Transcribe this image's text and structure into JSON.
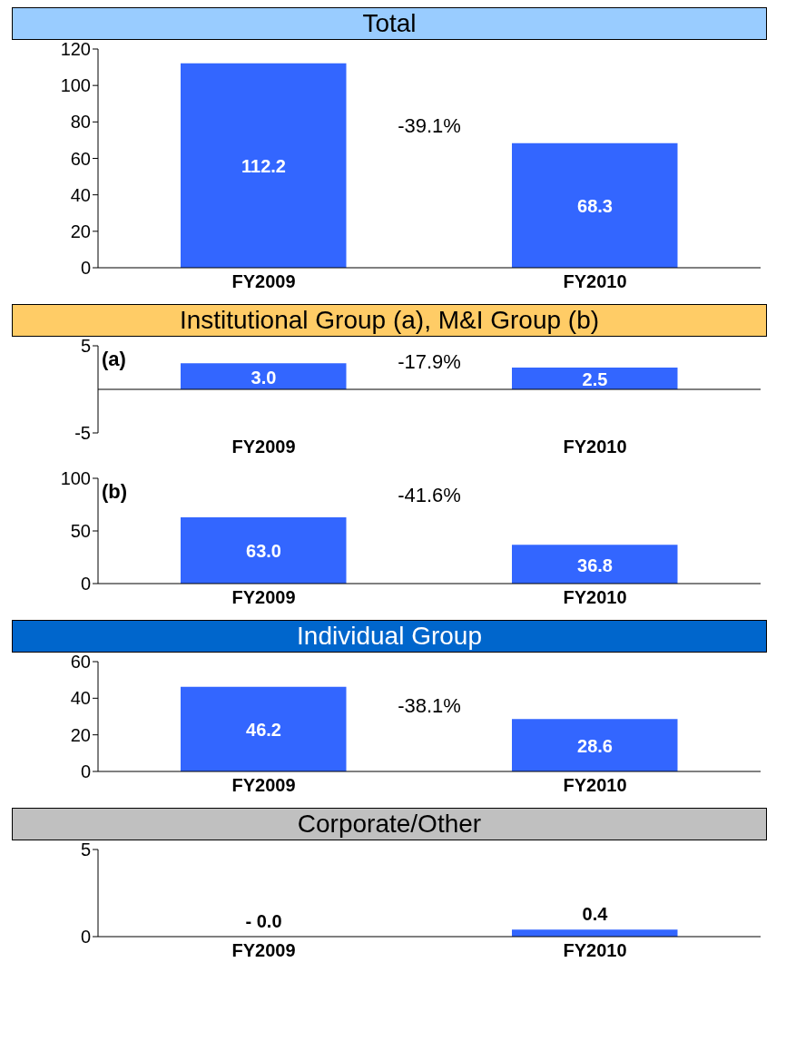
{
  "chart_data": [
    {
      "type": "bar",
      "title": "Total",
      "categories": [
        "FY2009",
        "FY2010"
      ],
      "values": [
        112.2,
        68.3
      ],
      "color": "#3366ff",
      "ylim": [
        0,
        120
      ],
      "yticks": [
        0,
        20,
        40,
        60,
        80,
        100,
        120
      ],
      "data_labels": true,
      "annotations": [
        "-39.1%"
      ]
    },
    {
      "type": "bar",
      "title": "Institutional Group (a), M&I Group (b)",
      "categories": [
        "FY2009",
        "FY2010"
      ],
      "values": [
        3.0,
        2.5
      ],
      "color": "#3366ff",
      "ylim": [
        -5,
        5
      ],
      "yticks": [
        -5,
        5
      ],
      "value_labels": [
        "3.0",
        "2.5"
      ],
      "annotations": [
        "(a)",
        "-17.9%"
      ]
    },
    {
      "type": "bar",
      "categories": [
        "FY2009",
        "FY2010"
      ],
      "values": [
        63.0,
        36.8
      ],
      "color": "#3366ff",
      "ylim": [
        0,
        100
      ],
      "yticks": [
        0,
        50,
        100
      ],
      "value_labels": [
        "63.0",
        "36.8"
      ],
      "annotations": [
        "(b)",
        "-41.6%"
      ]
    },
    {
      "type": "bar",
      "title": "Individual Group",
      "categories": [
        "FY2009",
        "FY2010"
      ],
      "values": [
        46.2,
        28.6
      ],
      "color": "#3366ff",
      "ylim": [
        0,
        60
      ],
      "yticks": [
        0,
        20,
        40,
        60
      ],
      "data_labels": true,
      "annotations": [
        "-38.1%"
      ]
    },
    {
      "type": "bar",
      "title": "Corporate/Other",
      "categories": [
        "FY2009",
        "FY2010"
      ],
      "values": [
        0,
        0.4
      ],
      "color": "#3366ff",
      "ylim": [
        0,
        5
      ],
      "yticks": [
        0,
        5
      ],
      "value_labels": [
        "- 0.0",
        "0.4"
      ]
    }
  ]
}
